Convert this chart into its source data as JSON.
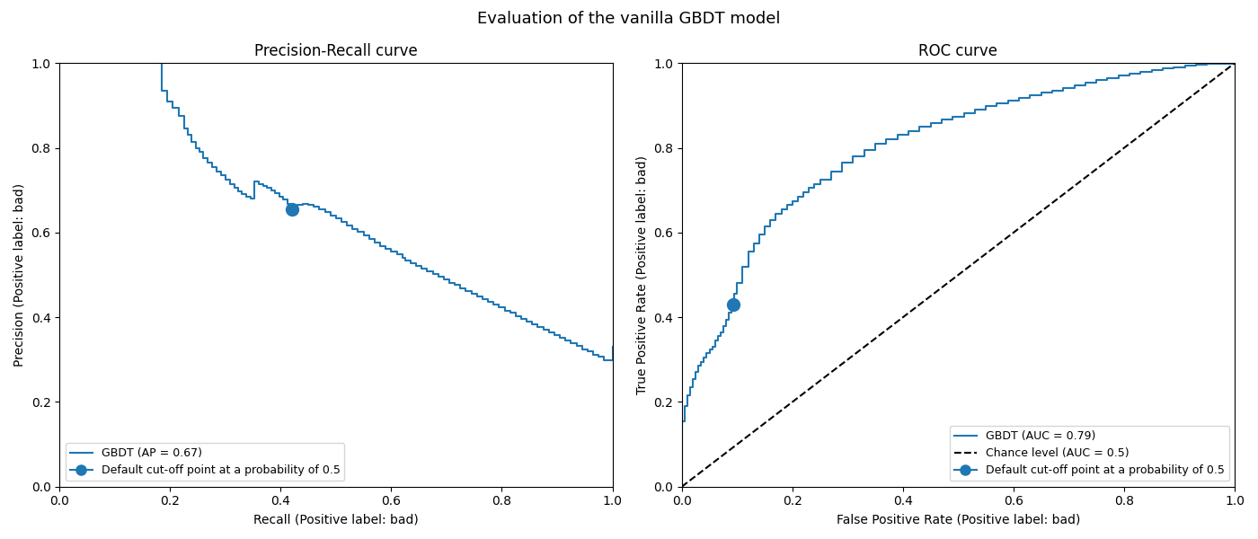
{
  "title": "Evaluation of the vanilla GBDT model",
  "pr_title": "Precision-Recall curve",
  "roc_title": "ROC curve",
  "pr_xlabel": "Recall (Positive label: bad)",
  "pr_ylabel": "Precision (Positive label: bad)",
  "roc_xlabel": "False Positive Rate (Positive label: bad)",
  "roc_ylabel": "True Positive Rate (Positive label: bad)",
  "pr_legend_curve": "GBDT (AP = 0.67)",
  "pr_legend_point": "Default cut-off point at a probability of 0.5",
  "roc_legend_curve": "GBDT (AUC = 0.79)",
  "roc_legend_chance": "Chance level (AUC = 0.5)",
  "roc_legend_point": "Default cut-off point at a probability of 0.5",
  "line_color": "#1f77b4",
  "point_color": "#1f77b4",
  "chance_color": "black",
  "pr_cutoff_recall": 0.42,
  "pr_cutoff_precision": 0.655,
  "roc_cutoff_fpr": 0.093,
  "roc_cutoff_tpr": 0.43,
  "figsize": [
    14.0,
    6.0
  ],
  "dpi": 100,
  "pr_recall_breaks": [
    0.0,
    0.17,
    0.185,
    0.2,
    0.21,
    0.215,
    0.225,
    0.235,
    0.245,
    0.255,
    0.265,
    0.275,
    0.285,
    0.295,
    0.305,
    0.315,
    0.325,
    0.335,
    0.345,
    0.355,
    0.365,
    0.375,
    0.385,
    0.395,
    0.405,
    0.415,
    0.425,
    0.435,
    0.445,
    0.455,
    0.465,
    0.475,
    0.485,
    0.495,
    0.505,
    0.515,
    0.525,
    0.535,
    0.545,
    0.555,
    0.565,
    0.575,
    0.585,
    0.595,
    0.605,
    0.615,
    0.625,
    0.64,
    0.655,
    0.665,
    0.675,
    0.685,
    0.695,
    0.705,
    0.715,
    0.725,
    0.735,
    0.745,
    0.755,
    0.765,
    0.775,
    0.785,
    0.795,
    0.805,
    0.815,
    0.825,
    0.835,
    0.845,
    0.855,
    0.865,
    0.875,
    0.885,
    0.895,
    0.905,
    0.915,
    0.925,
    0.935,
    0.945,
    0.955,
    0.965,
    0.975,
    0.985,
    1.0
  ],
  "pr_precision_breaks": [
    1.0,
    1.0,
    0.935,
    0.91,
    0.895,
    0.875,
    0.845,
    0.82,
    0.795,
    0.775,
    0.755,
    0.735,
    0.72,
    0.705,
    0.69,
    0.675,
    0.665,
    0.655,
    0.645,
    0.64,
    0.635,
    0.635,
    0.645,
    0.645,
    0.65,
    0.655,
    0.66,
    0.665,
    0.665,
    0.665,
    0.66,
    0.655,
    0.65,
    0.645,
    0.64,
    0.635,
    0.625,
    0.615,
    0.605,
    0.595,
    0.585,
    0.575,
    0.565,
    0.555,
    0.545,
    0.535,
    0.525,
    0.535,
    0.53,
    0.525,
    0.52,
    0.515,
    0.51,
    0.505,
    0.5,
    0.495,
    0.49,
    0.485,
    0.48,
    0.475,
    0.47,
    0.465,
    0.46,
    0.455,
    0.45,
    0.445,
    0.44,
    0.435,
    0.43,
    0.425,
    0.42,
    0.415,
    0.41,
    0.405,
    0.4,
    0.395,
    0.39,
    0.385,
    0.38,
    0.375,
    0.37,
    0.36,
    0.33
  ],
  "roc_fpr_breaks": [
    0.0,
    0.0,
    0.005,
    0.01,
    0.015,
    0.02,
    0.025,
    0.03,
    0.035,
    0.04,
    0.045,
    0.05,
    0.055,
    0.06,
    0.065,
    0.07,
    0.075,
    0.08,
    0.085,
    0.09,
    0.095,
    0.1,
    0.11,
    0.12,
    0.13,
    0.14,
    0.15,
    0.16,
    0.17,
    0.18,
    0.19,
    0.2,
    0.21,
    0.22,
    0.23,
    0.24,
    0.25,
    0.27,
    0.29,
    0.31,
    0.33,
    0.35,
    0.37,
    0.39,
    0.41,
    0.43,
    0.45,
    0.47,
    0.49,
    0.51,
    0.53,
    0.55,
    0.57,
    0.59,
    0.61,
    0.63,
    0.65,
    0.67,
    0.69,
    0.71,
    0.73,
    0.75,
    0.77,
    0.79,
    0.81,
    0.83,
    0.85,
    0.87,
    0.89,
    0.91,
    0.93,
    0.95,
    0.97,
    1.0
  ],
  "roc_tpr_breaks": [
    0.0,
    0.155,
    0.19,
    0.215,
    0.235,
    0.255,
    0.27,
    0.285,
    0.295,
    0.305,
    0.315,
    0.325,
    0.33,
    0.345,
    0.355,
    0.365,
    0.38,
    0.395,
    0.41,
    0.43,
    0.455,
    0.48,
    0.52,
    0.555,
    0.575,
    0.595,
    0.615,
    0.63,
    0.645,
    0.655,
    0.665,
    0.675,
    0.685,
    0.695,
    0.705,
    0.715,
    0.725,
    0.745,
    0.765,
    0.78,
    0.795,
    0.81,
    0.82,
    0.83,
    0.84,
    0.85,
    0.858,
    0.866,
    0.874,
    0.882,
    0.89,
    0.898,
    0.906,
    0.912,
    0.918,
    0.924,
    0.93,
    0.936,
    0.942,
    0.948,
    0.954,
    0.96,
    0.965,
    0.97,
    0.975,
    0.98,
    0.984,
    0.988,
    0.991,
    0.994,
    0.996,
    0.998,
    0.999,
    1.0
  ]
}
